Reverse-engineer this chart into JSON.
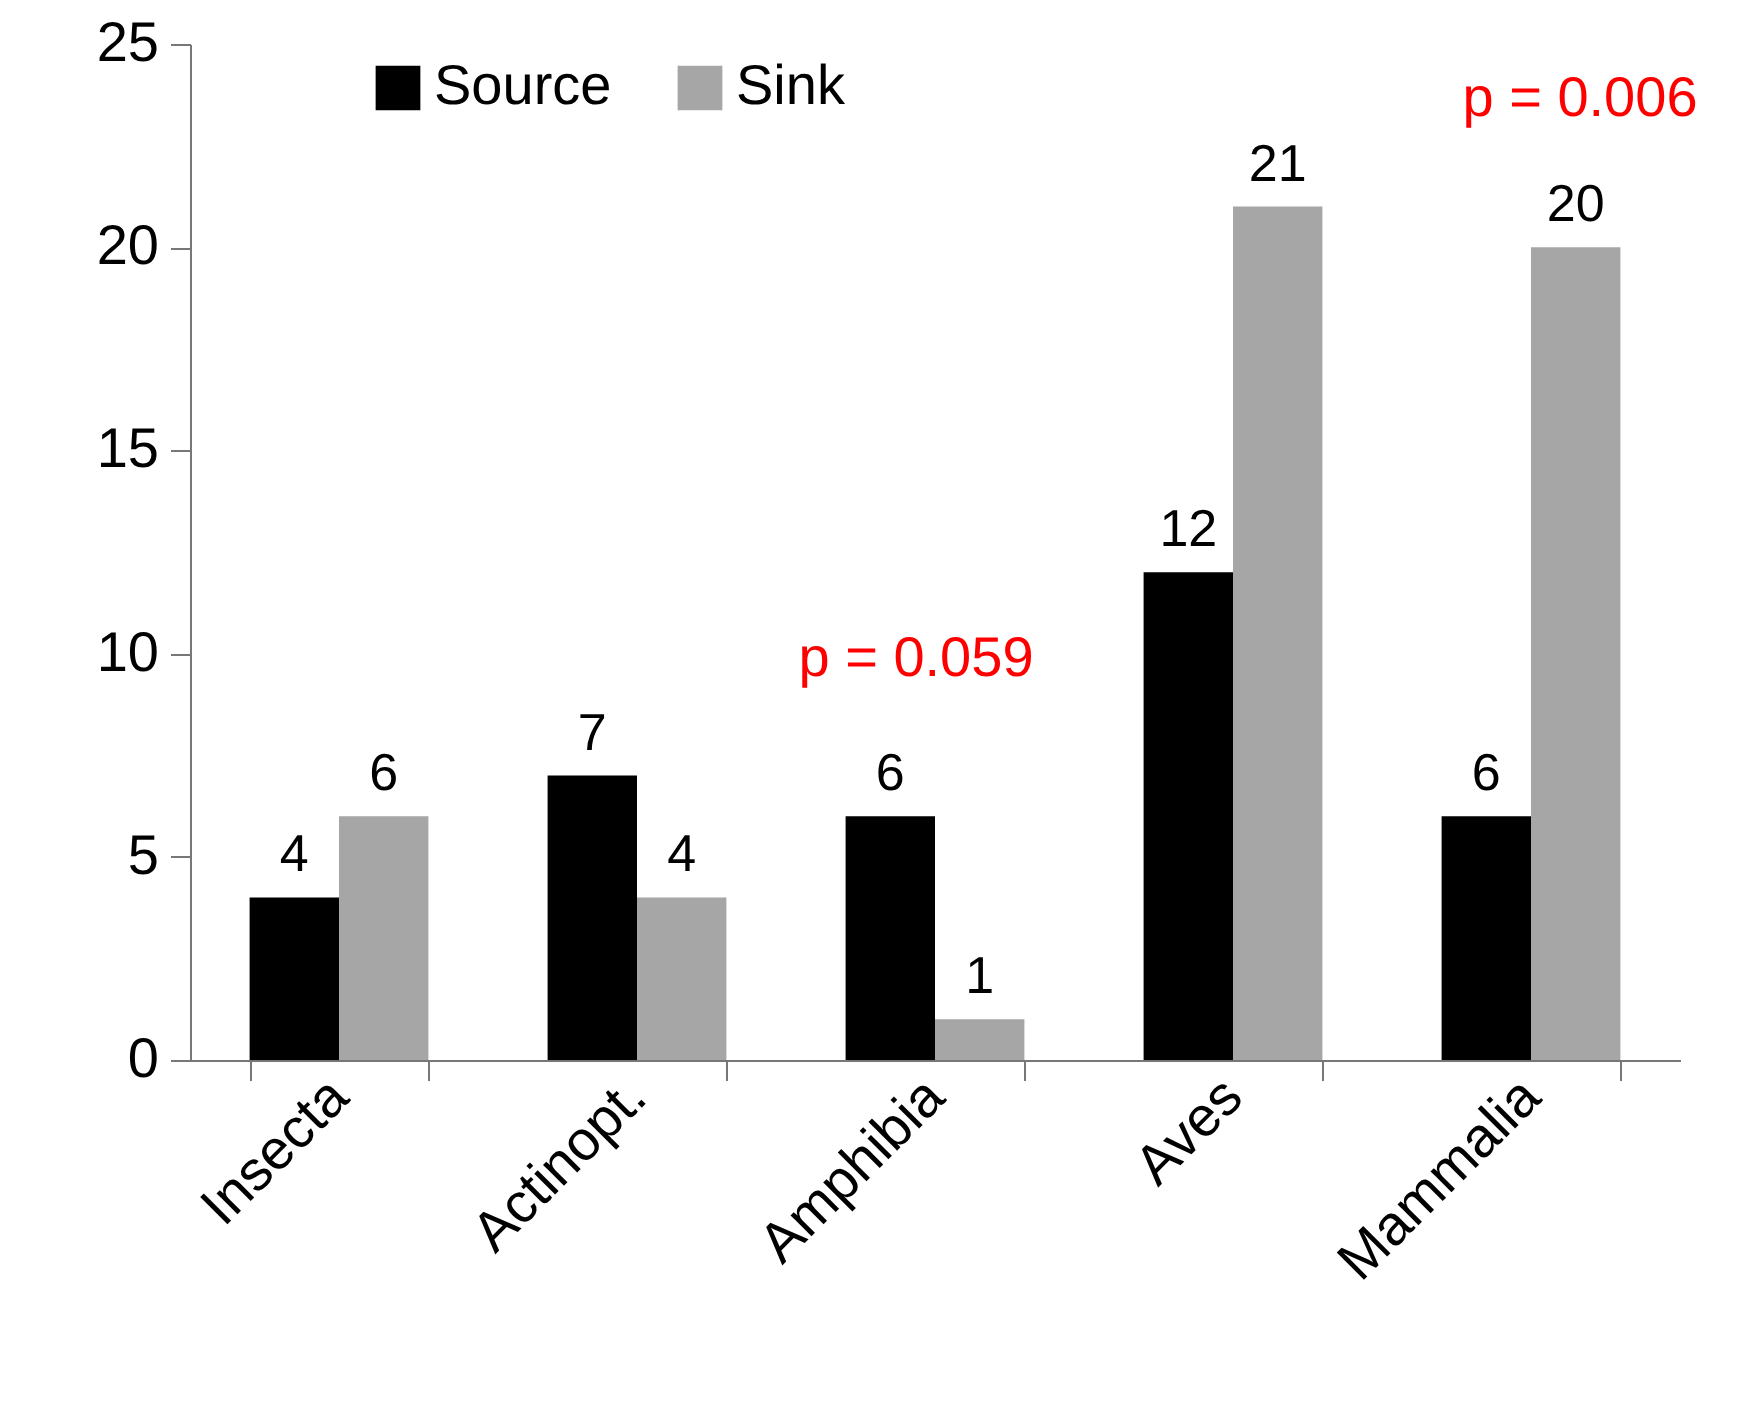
{
  "chart_data": {
    "type": "bar",
    "categories": [
      "Insecta",
      "Actinopt.",
      "Amphibia",
      "Aves",
      "Mammalia"
    ],
    "series": [
      {
        "name": "Source",
        "color": "#000000",
        "values": [
          4,
          7,
          6,
          12,
          6
        ]
      },
      {
        "name": "Sink",
        "color": "#a6a6a6",
        "values": [
          6,
          4,
          1,
          21,
          20
        ]
      }
    ],
    "ylim": [
      0,
      25
    ],
    "yticks": [
      0,
      5,
      10,
      15,
      20,
      25
    ],
    "data_labels": true,
    "legend": "top left",
    "annotations": [
      "p = 0.059",
      "p = 0.006"
    ]
  }
}
